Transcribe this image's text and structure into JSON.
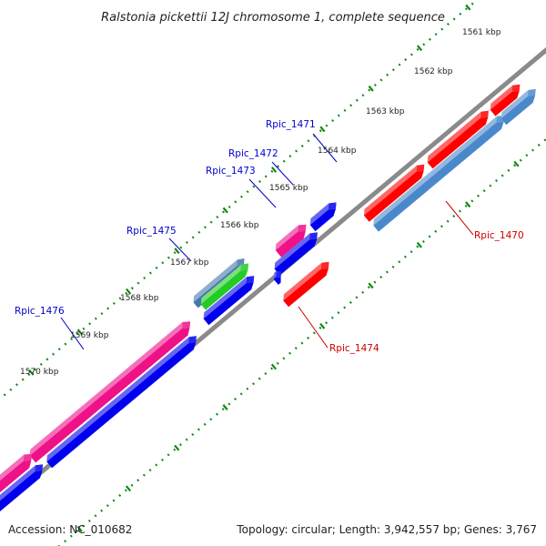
{
  "map": {
    "title": "Ralstonia pickettii 12J chromosome 1, complete sequence",
    "accession_text": "Accession: NC_010682",
    "summary_text": "Topology: circular; Length: 3,942,557 bp; Genes: 3,767"
  },
  "colors": {
    "backbone": "#8a8a8a",
    "tick_dots": "#118811",
    "label_blue": "#0000cc",
    "label_red": "#cc0000",
    "gene_red": "#ff0000",
    "gene_blue": "#0000ee",
    "gene_pink": "#ee1188",
    "gene_steel": "#4a88cc",
    "gene_green": "#22cc22",
    "gene_slate": "#4477aa"
  },
  "scale": {
    "unit": "kbp",
    "tick_labels": [
      "1561 kbp",
      "1562 kbp",
      "1563 kbp",
      "1564 kbp",
      "1565 kbp",
      "1566 kbp",
      "1567 kbp",
      "1568 kbp",
      "1569 kbp",
      "1570 kbp"
    ]
  },
  "gene_labels": [
    {
      "name": "Rpic_1470",
      "color": "red"
    },
    {
      "name": "Rpic_1471",
      "color": "blue"
    },
    {
      "name": "Rpic_1472",
      "color": "blue"
    },
    {
      "name": "Rpic_1473",
      "color": "blue"
    },
    {
      "name": "Rpic_1474",
      "color": "red"
    },
    {
      "name": "Rpic_1475",
      "color": "blue"
    },
    {
      "name": "Rpic_1476",
      "color": "blue"
    }
  ]
}
